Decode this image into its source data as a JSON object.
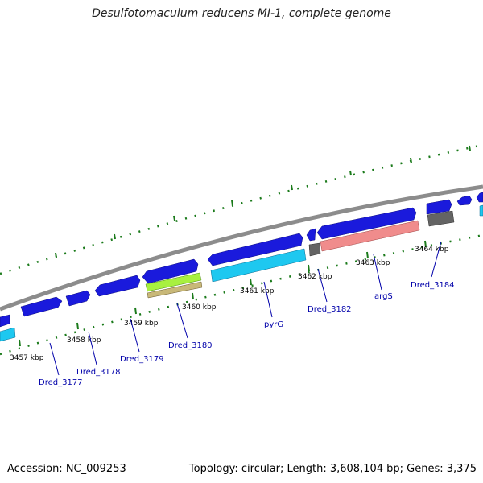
{
  "title": "Desulfotomaculum reducens MI-1, complete genome",
  "footer": {
    "accession": "Accession: NC_009253",
    "stats": "Topology: circular; Length: 3,608,104 bp; Genes: 3,375"
  },
  "colors": {
    "backbone": "#8c8c8c",
    "cds": "#1a1adc",
    "cyan": "#1ec8f0",
    "green": "#a8f040",
    "khaki": "#c8b878",
    "salmon": "#f08c8c",
    "grey": "#646464",
    "tick": "#1a7a1a",
    "label": "#0000aa"
  },
  "kbp_ticks": [
    {
      "kbp": 3457,
      "label": "3457 kbp"
    },
    {
      "kbp": 3458,
      "label": "3458 kbp"
    },
    {
      "kbp": 3459,
      "label": "3459 kbp"
    },
    {
      "kbp": 3460,
      "label": "3460 kbp"
    },
    {
      "kbp": 3461,
      "label": "3461 kbp"
    },
    {
      "kbp": 3462,
      "label": "3462 kbp"
    },
    {
      "kbp": 3463,
      "label": "3463 kbp"
    },
    {
      "kbp": 3464,
      "label": "3464 kbp"
    }
  ],
  "gene_labels": [
    "Dred_3177",
    "Dred_3178",
    "Dred_3179",
    "Dred_3180",
    "pyrG",
    "Dred_3182",
    "argS",
    "Dred_3184"
  ]
}
